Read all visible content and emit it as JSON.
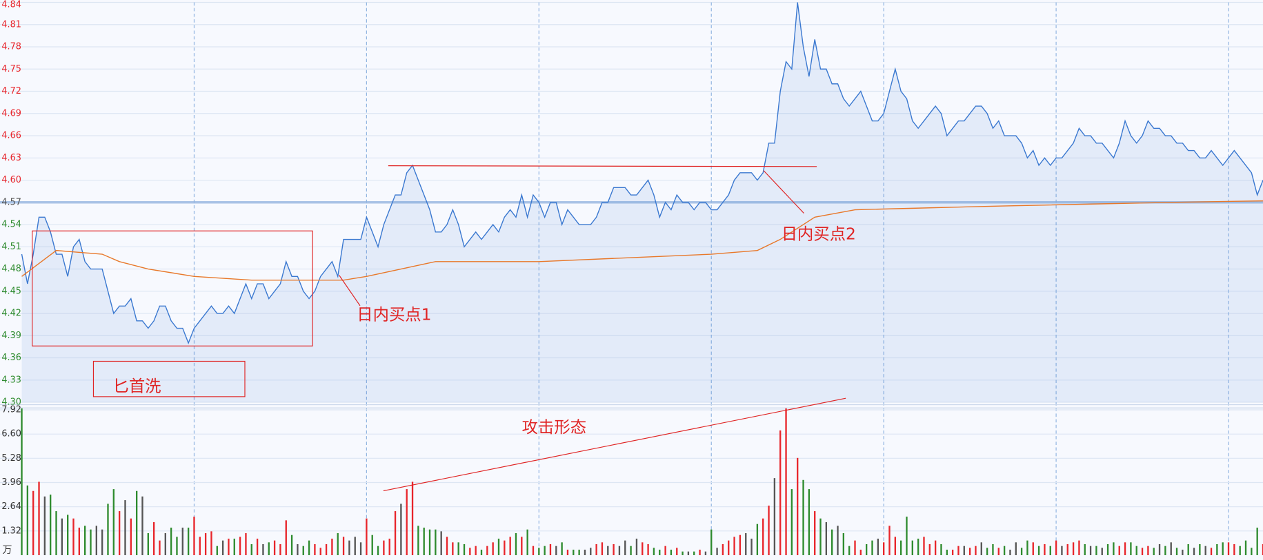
{
  "chart_data": [
    {
      "type": "line",
      "series": [
        {
          "color": "#3a78d0",
          "values": [
            4.5,
            4.46,
            4.5,
            4.55,
            4.55,
            4.53,
            4.5,
            4.5,
            4.47,
            4.51,
            4.52,
            4.49,
            4.48,
            4.48,
            4.48,
            4.45,
            4.42,
            4.43,
            4.43,
            4.44,
            4.41,
            4.41,
            4.4,
            4.41,
            4.43,
            4.43,
            4.41,
            4.4,
            4.4,
            4.38,
            4.4,
            4.41,
            4.42,
            4.43,
            4.42,
            4.42,
            4.43,
            4.42,
            4.44,
            4.46,
            4.44,
            4.46,
            4.46,
            4.44,
            4.45,
            4.46,
            4.49,
            4.47,
            4.47,
            4.45,
            4.44,
            4.45,
            4.47,
            4.48,
            4.49,
            4.47,
            4.52,
            4.52,
            4.52,
            4.52,
            4.55,
            4.53,
            4.51,
            4.54,
            4.56,
            4.58,
            4.58,
            4.61,
            4.62,
            4.6,
            4.58,
            4.56,
            4.53,
            4.53,
            4.54,
            4.56,
            4.54,
            4.51,
            4.52,
            4.53,
            4.52,
            4.53,
            4.54,
            4.53,
            4.55,
            4.56,
            4.55,
            4.58,
            4.55,
            4.58,
            4.57,
            4.55,
            4.57,
            4.57,
            4.54,
            4.56,
            4.55,
            4.54,
            4.54,
            4.54,
            4.55,
            4.57,
            4.57,
            4.59,
            4.59,
            4.59,
            4.58,
            4.58,
            4.59,
            4.6,
            4.58,
            4.55,
            4.57,
            4.56,
            4.58,
            4.57,
            4.57,
            4.56,
            4.57,
            4.57,
            4.56,
            4.56,
            4.57,
            4.58,
            4.6,
            4.61,
            4.61,
            4.61,
            4.6,
            4.61,
            4.65,
            4.65,
            4.72,
            4.76,
            4.75,
            4.84,
            4.78,
            4.74,
            4.79,
            4.75,
            4.75,
            4.73,
            4.73,
            4.71,
            4.7,
            4.71,
            4.72,
            4.7,
            4.68,
            4.68,
            4.69,
            4.72,
            4.75,
            4.72,
            4.71,
            4.68,
            4.67,
            4.68,
            4.69,
            4.7,
            4.69,
            4.66,
            4.67,
            4.68,
            4.68,
            4.69,
            4.7,
            4.7,
            4.69,
            4.67,
            4.68,
            4.66,
            4.66,
            4.66,
            4.65,
            4.63,
            4.64,
            4.62,
            4.63,
            4.62,
            4.63,
            4.63,
            4.64,
            4.65,
            4.67,
            4.66,
            4.66,
            4.65,
            4.65,
            4.64,
            4.63,
            4.65,
            4.68,
            4.66,
            4.65,
            4.66,
            4.68,
            4.67,
            4.67,
            4.66,
            4.66,
            4.65,
            4.65,
            4.64,
            4.64,
            4.63,
            4.63,
            4.64,
            4.63,
            4.62,
            4.63,
            4.64,
            4.63,
            4.62,
            4.61,
            4.58,
            4.6
          ]
        },
        {
          "color": "#e8782a",
          "x": [
            0,
            6,
            14,
            17,
            22,
            30,
            40,
            56,
            60,
            66,
            72,
            90,
            105,
            120,
            128,
            132,
            138,
            145,
            155,
            170,
            200,
            216
          ],
          "values": [
            4.47,
            4.505,
            4.5,
            4.49,
            4.48,
            4.47,
            4.465,
            4.465,
            4.47,
            4.48,
            4.49,
            4.49,
            4.495,
            4.5,
            4.505,
            4.52,
            4.55,
            4.56,
            4.562,
            4.565,
            4.57,
            4.572
          ]
        }
      ],
      "xlim": [
        0,
        216
      ],
      "xticks": [
        30,
        60,
        90,
        120,
        150,
        180,
        210
      ],
      "ylim": [
        4.3,
        4.84
      ],
      "yticks": [
        {
          "value": 4.3,
          "label": "4.30"
        },
        4.33,
        4.36,
        4.39,
        4.42,
        4.45,
        4.48,
        4.51,
        4.54,
        4.57,
        {
          "value": 4.6,
          "label": "4.60"
        },
        4.63,
        4.66,
        4.69,
        4.72,
        4.75,
        4.78,
        4.81,
        4.84
      ],
      "reference_price": 4.57,
      "grid": true,
      "up_color": "#e8252b",
      "down_color": "#2e8b2e",
      "flat_color": "#555555",
      "annotations": [
        "匕首洗",
        "日内买点1",
        "日内买点2"
      ]
    },
    {
      "type": "bar",
      "values": [
        8.0,
        3.8,
        3.5,
        4.0,
        3.2,
        3.3,
        2.4,
        2.0,
        2.2,
        2.0,
        1.5,
        1.6,
        1.4,
        1.6,
        1.4,
        2.8,
        3.6,
        2.4,
        3.0,
        2.0,
        3.5,
        3.2,
        1.2,
        1.8,
        0.8,
        1.2,
        1.5,
        1.0,
        1.5,
        1.5,
        2.1,
        1.0,
        1.2,
        1.3,
        0.5,
        0.8,
        0.9,
        0.9,
        1.0,
        1.2,
        0.6,
        0.9,
        0.6,
        0.7,
        0.8,
        0.6,
        1.9,
        1.1,
        0.6,
        0.5,
        0.8,
        0.6,
        0.4,
        0.6,
        0.9,
        1.2,
        1.0,
        0.8,
        1.0,
        0.7,
        2.0,
        1.1,
        0.5,
        0.8,
        0.9,
        2.4,
        2.8,
        3.6,
        4.0,
        1.6,
        1.5,
        1.4,
        1.4,
        1.3,
        1.0,
        0.7,
        0.7,
        0.6,
        0.4,
        0.5,
        0.3,
        0.5,
        0.7,
        0.9,
        0.8,
        1.0,
        1.2,
        1.0,
        1.4,
        0.5,
        0.4,
        0.5,
        0.6,
        0.5,
        0.7,
        0.3,
        0.3,
        0.3,
        0.3,
        0.4,
        0.6,
        0.7,
        0.5,
        0.6,
        0.5,
        0.8,
        0.5,
        0.9,
        0.7,
        0.6,
        0.4,
        0.3,
        0.5,
        0.3,
        0.4,
        0.2,
        0.2,
        0.2,
        0.3,
        0.2,
        1.4,
        0.4,
        0.6,
        0.8,
        1.0,
        1.1,
        1.2,
        0.9,
        1.7,
        2.0,
        2.7,
        4.2,
        6.8,
        8.0,
        3.6,
        5.3,
        4.1,
        3.6,
        2.4,
        2.0,
        1.8,
        1.4,
        1.6,
        1.2,
        0.5,
        0.8,
        0.3,
        0.6,
        0.8,
        0.9,
        0.7,
        1.6,
        1.0,
        0.8,
        2.1,
        0.8,
        0.9,
        1.0,
        0.6,
        0.8,
        0.6,
        0.3,
        0.3,
        0.5,
        0.5,
        0.4,
        0.5,
        0.7,
        0.4,
        0.6,
        0.4,
        0.5,
        0.3,
        0.7,
        0.4,
        0.8,
        0.7,
        0.5,
        0.6,
        0.5,
        0.8,
        0.5,
        0.6,
        0.7,
        0.8,
        0.6,
        0.5,
        0.5,
        0.4,
        0.6,
        0.7,
        0.5,
        0.7,
        0.7,
        0.5,
        0.4,
        0.5,
        0.4,
        0.6,
        0.5,
        0.7,
        0.4,
        0.3,
        0.6,
        0.4,
        0.6,
        0.5,
        0.4,
        0.6,
        0.7,
        0.7,
        0.6,
        0.5,
        0.8,
        0.4,
        1.5,
        0.6
      ],
      "ylim": [
        0,
        8.2
      ],
      "yticks": [
        1.32,
        2.64,
        3.96,
        5.28,
        {
          "value": 6.6,
          "label": "6.60"
        },
        7.92
      ],
      "unit": "万",
      "annotations": [
        "攻击形态"
      ]
    }
  ]
}
